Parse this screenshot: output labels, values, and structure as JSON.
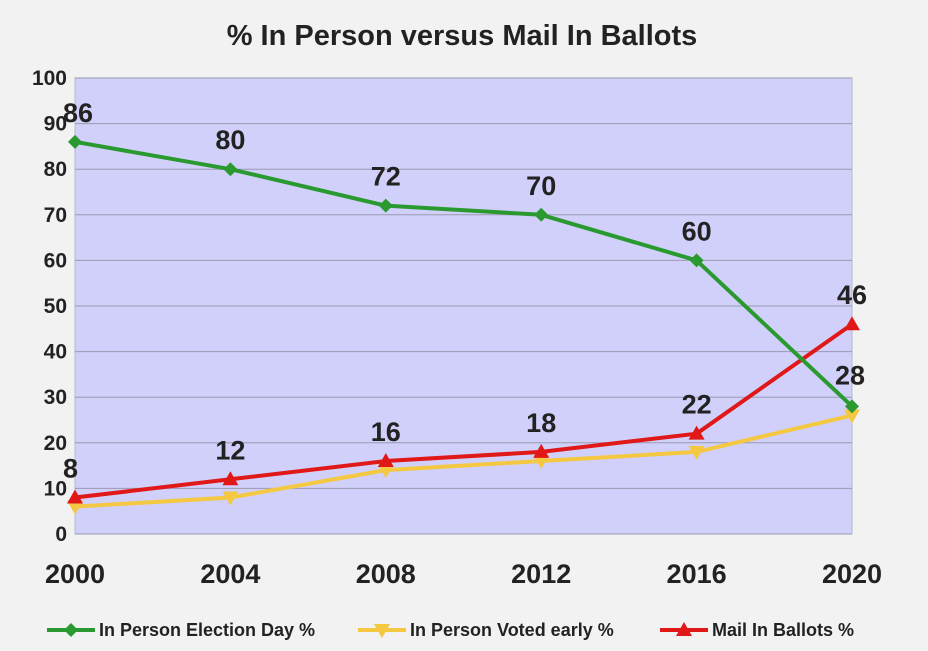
{
  "chart_data": {
    "type": "line",
    "title": "% In Person versus Mail In Ballots",
    "x": [
      "2000",
      "2004",
      "2008",
      "2012",
      "2016",
      "2020"
    ],
    "ylim": [
      0,
      100
    ],
    "yticks": [
      0,
      10,
      20,
      30,
      40,
      50,
      60,
      70,
      80,
      90,
      100
    ],
    "grid": true,
    "legend_position": "bottom",
    "plot_background": "#d0d0fa",
    "series": [
      {
        "name": "In Person Election Day %",
        "values": [
          86,
          80,
          72,
          70,
          60,
          28
        ],
        "color": "#2a9a30",
        "marker": "diamond",
        "labels": [
          "86",
          "80",
          "72",
          "70",
          "60",
          "28"
        ]
      },
      {
        "name": "In Person Voted early %",
        "values": [
          6,
          8,
          14,
          16,
          18,
          26
        ],
        "color": "#f5c842",
        "marker": "triangle-down",
        "labels": []
      },
      {
        "name": "Mail In Ballots %",
        "values": [
          8,
          12,
          16,
          18,
          22,
          46
        ],
        "color": "#e01818",
        "marker": "triangle-up",
        "labels": [
          "8",
          "12",
          "16",
          "18",
          "22",
          "46"
        ]
      }
    ]
  }
}
